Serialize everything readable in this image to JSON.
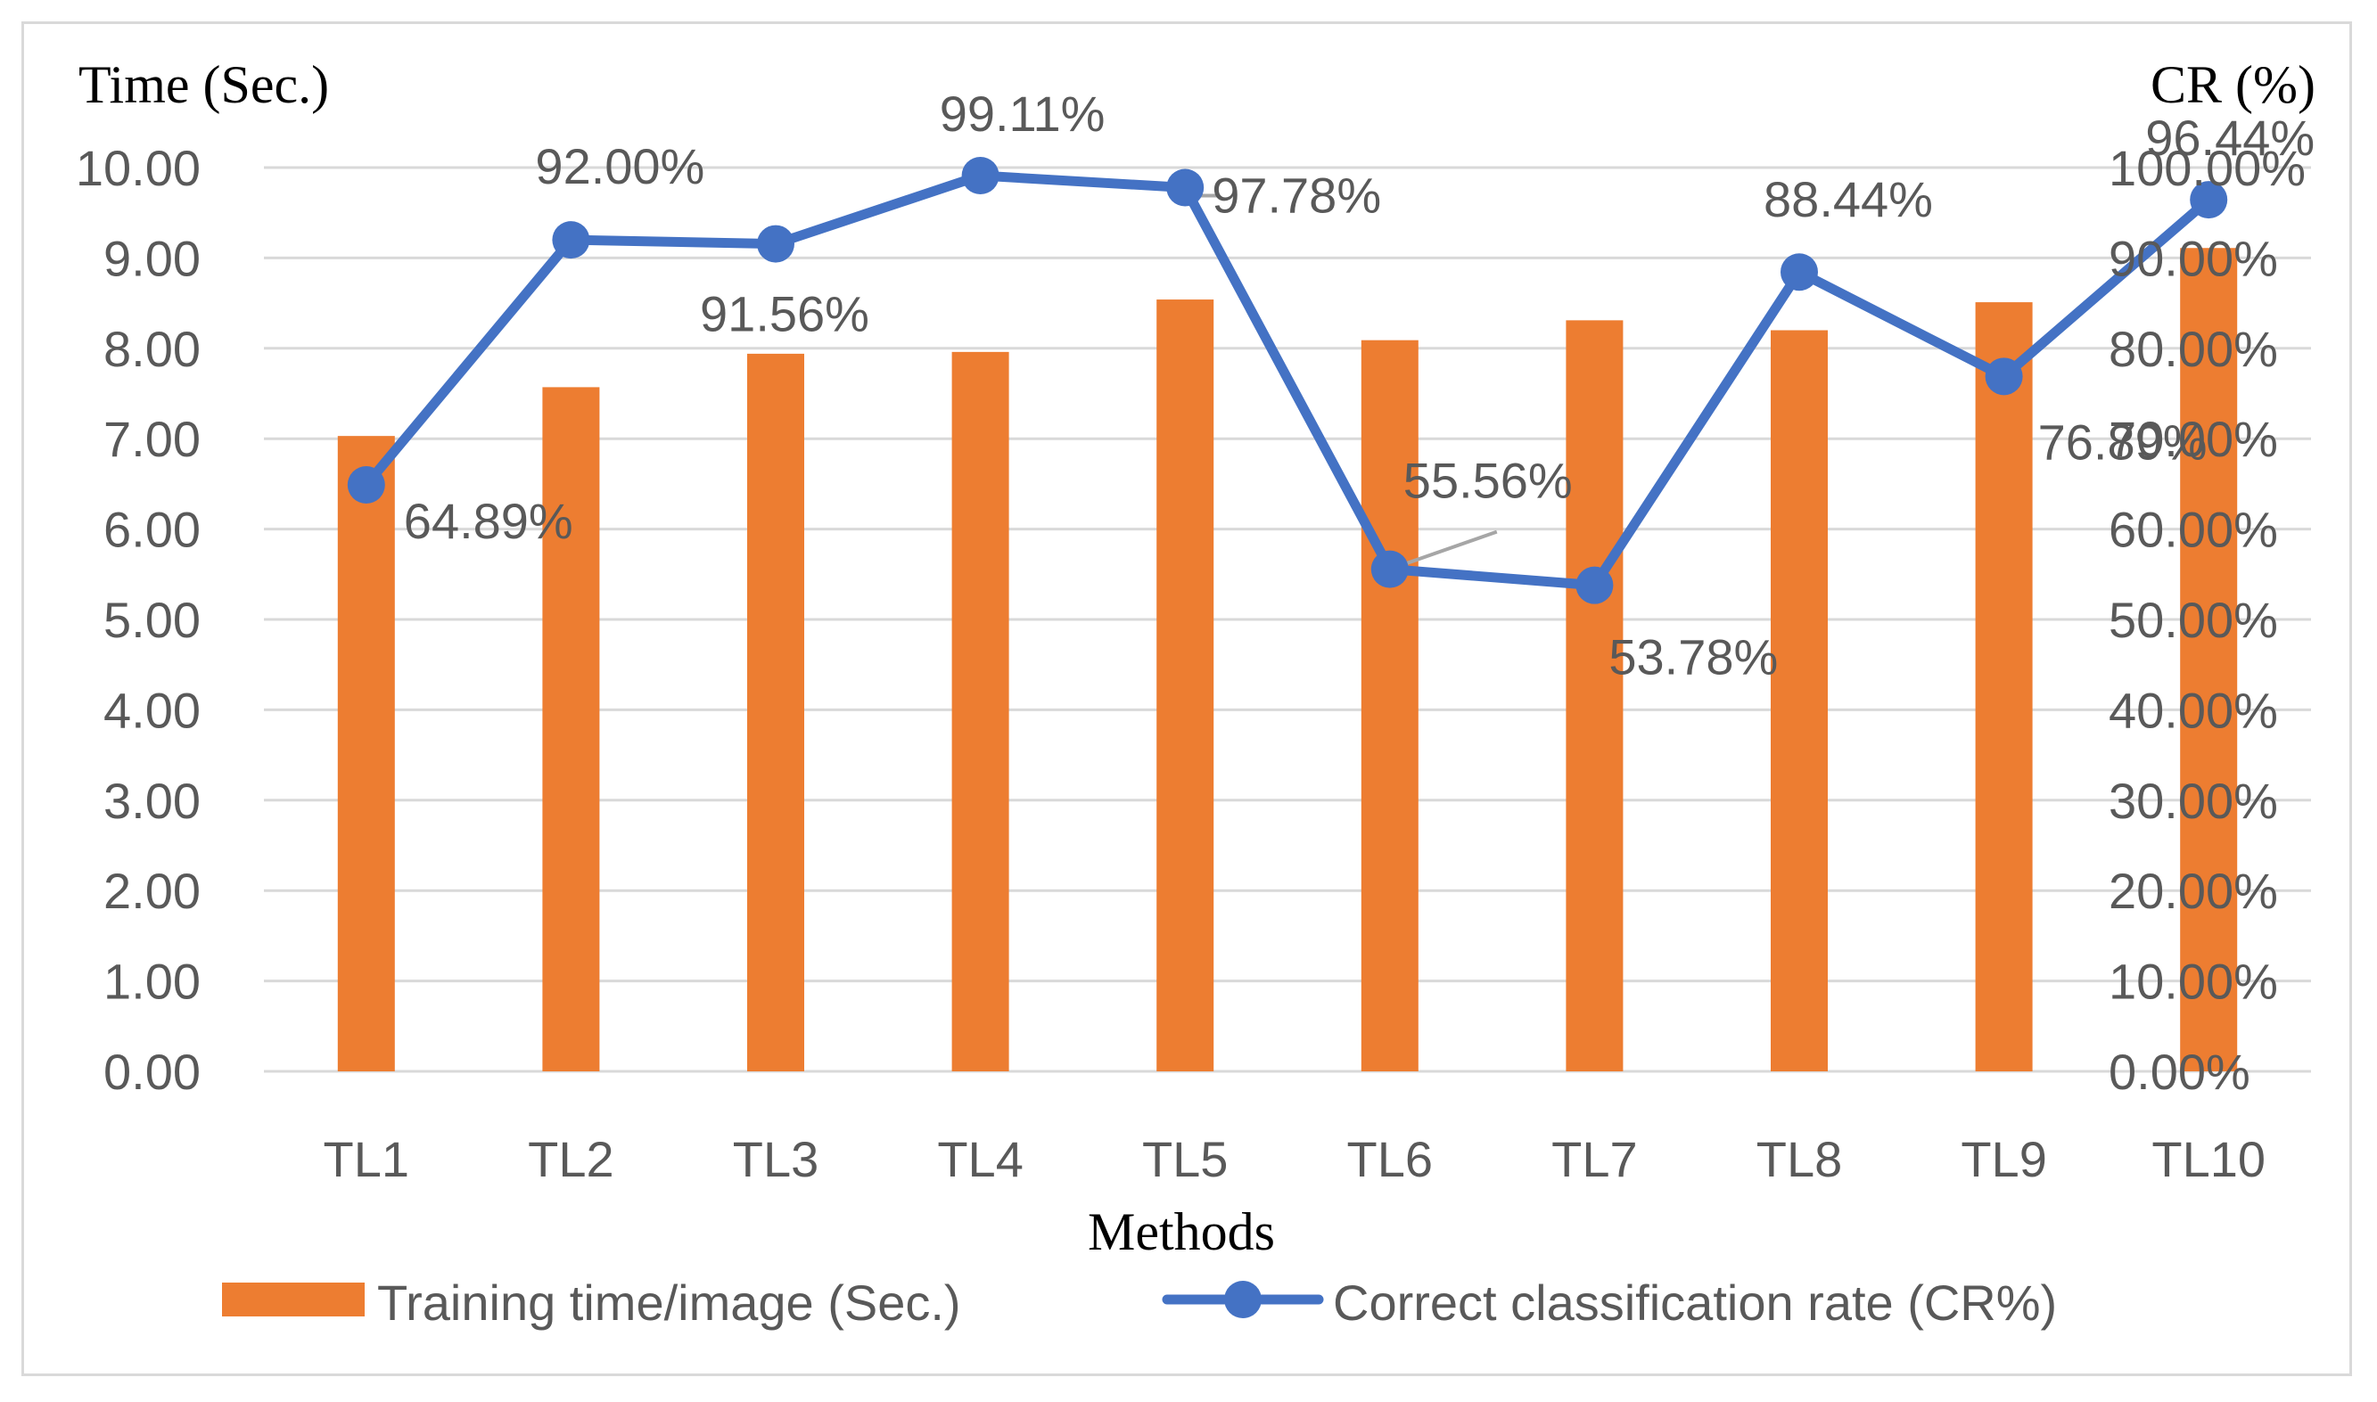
{
  "chart_data": {
    "type": "bar",
    "categories": [
      "TL1",
      "TL2",
      "TL3",
      "TL4",
      "TL5",
      "TL6",
      "TL7",
      "TL8",
      "TL9",
      "TL10"
    ],
    "series": [
      {
        "name": "Training time/image (Sec.)",
        "type": "bar",
        "axis": "left",
        "color": "#ed7d31",
        "values": [
          7.03,
          7.57,
          7.94,
          7.96,
          8.54,
          8.09,
          8.31,
          8.2,
          8.51,
          9.11
        ]
      },
      {
        "name": "Correct classification rate (CR%)",
        "type": "line",
        "axis": "right",
        "color": "#4472c4",
        "values": [
          64.89,
          92.0,
          91.56,
          99.11,
          97.78,
          55.56,
          53.78,
          88.44,
          76.89,
          96.44
        ],
        "data_labels": [
          "64.89%",
          "92.00%",
          "91.56%",
          "99.11%",
          "97.78%",
          "55.56%",
          "53.78%",
          "88.44%",
          "76.89%",
          "96.44%"
        ]
      }
    ],
    "ylabel_left": "Time (Sec.)",
    "ylabel_right": "CR (%)",
    "xlabel": "Methods",
    "ylim_left": [
      0,
      10
    ],
    "ylim_right": [
      0,
      100
    ],
    "yticks_left": [
      "0.00",
      "1.00",
      "2.00",
      "3.00",
      "4.00",
      "5.00",
      "6.00",
      "7.00",
      "8.00",
      "9.00",
      "10.00"
    ],
    "yticks_right": [
      "0.00%",
      "10.00%",
      "20.00%",
      "30.00%",
      "40.00%",
      "50.00%",
      "60.00%",
      "70.00%",
      "80.00%",
      "90.00%",
      "100.00%"
    ],
    "grid": true,
    "legend_position": "bottom",
    "gridline_color": "#d9d9d9",
    "text_color": "#595959"
  }
}
